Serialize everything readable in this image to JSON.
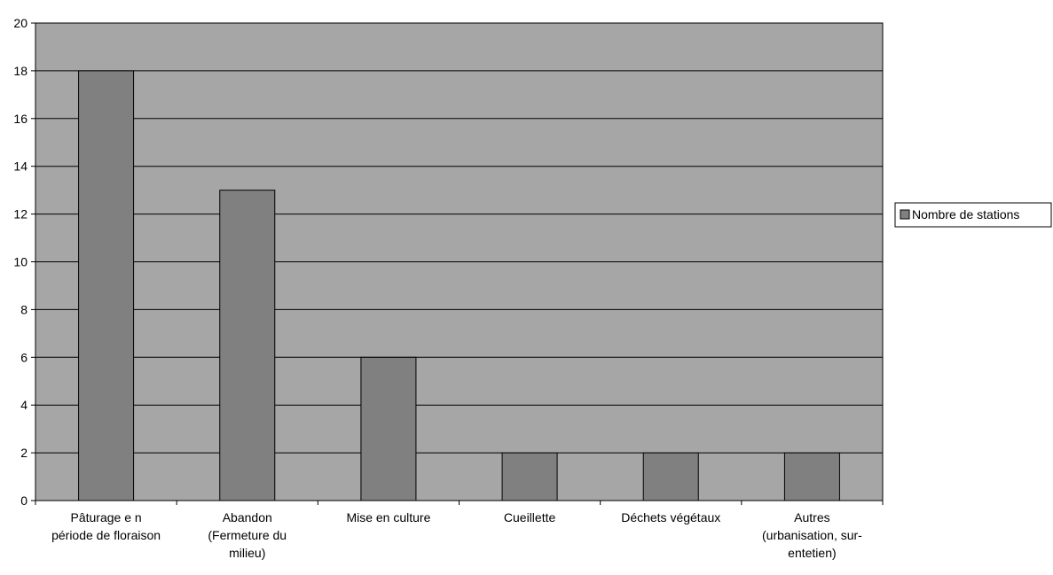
{
  "chart_data": {
    "type": "bar",
    "categories": [
      [
        "Pâturage e n",
        "période de floraison"
      ],
      [
        "Abandon",
        "(Fermeture du",
        "milieu)"
      ],
      [
        "Mise en culture"
      ],
      [
        "Cueillette"
      ],
      [
        "Déchets végétaux"
      ],
      [
        "Autres",
        "(urbanisation, sur-",
        "entetien)"
      ]
    ],
    "series": [
      {
        "name": "Nombre de stations",
        "values": [
          18,
          13,
          6,
          2,
          2,
          2
        ]
      }
    ],
    "ylim": [
      0,
      20
    ],
    "yticks": [
      0,
      2,
      4,
      6,
      8,
      10,
      12,
      14,
      16,
      18,
      20
    ],
    "grid": true,
    "legend_position": "right",
    "colors": {
      "plot_background": "#a6a6a6",
      "bar_fill": "#808080",
      "bar_stroke": "#000000",
      "gridline": "#000000",
      "axis": "#000000"
    }
  }
}
